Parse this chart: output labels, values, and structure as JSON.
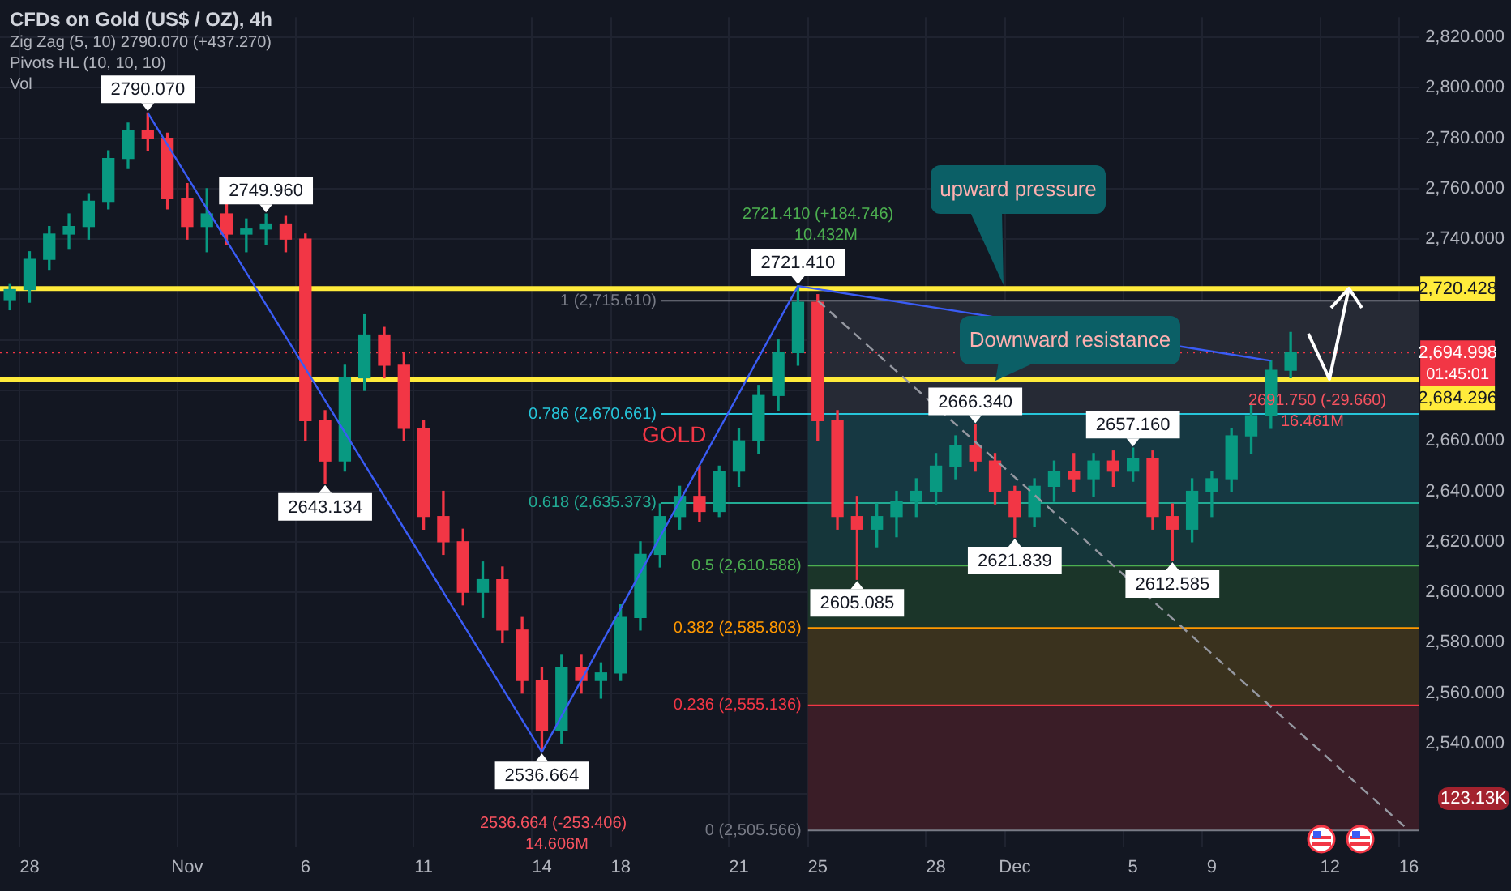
{
  "chart_data": {
    "type": "candlestick",
    "title": "CFDs on Gold (US$ / OZ), 4h",
    "categories": [
      null,
      "28",
      null,
      null,
      null,
      null,
      null,
      null,
      null,
      "Nov",
      null,
      null,
      null,
      null,
      null,
      "6",
      null,
      null,
      null,
      null,
      null,
      "11",
      null,
      null,
      null,
      null,
      null,
      "14",
      null,
      null,
      null,
      "18",
      null,
      null,
      null,
      null,
      null,
      "21",
      null,
      null,
      null,
      "25",
      null,
      null,
      null,
      null,
      null,
      "28",
      null,
      null,
      null,
      "Dec",
      null,
      null,
      null,
      null,
      null,
      "5",
      null,
      null,
      null,
      "9",
      null,
      null,
      null,
      null,
      null,
      "12",
      null,
      null,
      null,
      "16"
    ],
    "ohlc": [
      [
        2716,
        2722,
        2712,
        2720
      ],
      [
        2720,
        2735,
        2715,
        2732
      ],
      [
        2732,
        2745,
        2728,
        2742
      ],
      [
        2742,
        2750,
        2736,
        2745
      ],
      [
        2745,
        2758,
        2740,
        2755
      ],
      [
        2755,
        2775,
        2752,
        2772
      ],
      [
        2772,
        2786,
        2768,
        2783
      ],
      [
        2783,
        2790.07,
        2775,
        2780
      ],
      [
        2780,
        2782,
        2752,
        2756
      ],
      [
        2756,
        2762,
        2740,
        2745
      ],
      [
        2745,
        2760,
        2735,
        2750
      ],
      [
        2750,
        2755,
        2738,
        2742
      ],
      [
        2742,
        2748,
        2735,
        2744
      ],
      [
        2744,
        2749.96,
        2738,
        2746
      ],
      [
        2746,
        2749,
        2735,
        2740
      ],
      [
        2740,
        2742,
        2660,
        2668
      ],
      [
        2668,
        2672,
        2643.134,
        2652
      ],
      [
        2652,
        2690,
        2648,
        2685
      ],
      [
        2685,
        2710,
        2680,
        2702
      ],
      [
        2702,
        2705,
        2685,
        2690
      ],
      [
        2690,
        2695,
        2660,
        2665
      ],
      [
        2665,
        2668,
        2625,
        2630
      ],
      [
        2630,
        2640,
        2615,
        2620
      ],
      [
        2620,
        2625,
        2595,
        2600
      ],
      [
        2600,
        2612,
        2590,
        2605
      ],
      [
        2605,
        2610,
        2580,
        2585
      ],
      [
        2585,
        2590,
        2560,
        2565
      ],
      [
        2565,
        2570,
        2536.664,
        2545
      ],
      [
        2545,
        2575,
        2540,
        2570
      ],
      [
        2570,
        2575,
        2560,
        2565
      ],
      [
        2565,
        2572,
        2558,
        2568
      ],
      [
        2568,
        2595,
        2565,
        2590
      ],
      [
        2590,
        2620,
        2585,
        2615
      ],
      [
        2615,
        2635,
        2610,
        2630
      ],
      [
        2630,
        2642,
        2625,
        2638
      ],
      [
        2638,
        2650,
        2628,
        2632
      ],
      [
        2632,
        2650,
        2630,
        2648
      ],
      [
        2648,
        2665,
        2642,
        2660
      ],
      [
        2660,
        2682,
        2655,
        2678
      ],
      [
        2678,
        2700,
        2672,
        2695
      ],
      [
        2695,
        2721.41,
        2690,
        2715
      ],
      [
        2715,
        2718,
        2660,
        2668
      ],
      [
        2668,
        2672,
        2625,
        2630
      ],
      [
        2630,
        2638,
        2605.085,
        2625
      ],
      [
        2625,
        2635,
        2618,
        2630
      ],
      [
        2630,
        2640,
        2622,
        2636
      ],
      [
        2636,
        2645,
        2630,
        2640
      ],
      [
        2640,
        2655,
        2635,
        2650
      ],
      [
        2650,
        2662,
        2645,
        2658
      ],
      [
        2658,
        2666.34,
        2648,
        2652
      ],
      [
        2652,
        2655,
        2635,
        2640
      ],
      [
        2640,
        2642,
        2621.839,
        2630
      ],
      [
        2630,
        2645,
        2626,
        2642
      ],
      [
        2642,
        2652,
        2636,
        2648
      ],
      [
        2648,
        2655,
        2640,
        2645
      ],
      [
        2645,
        2655,
        2638,
        2652
      ],
      [
        2652,
        2656,
        2642,
        2648
      ],
      [
        2648,
        2657.16,
        2644,
        2653
      ],
      [
        2653,
        2656,
        2625,
        2630
      ],
      [
        2630,
        2635,
        2612.585,
        2625
      ],
      [
        2625,
        2645,
        2620,
        2640
      ],
      [
        2640,
        2648,
        2630,
        2645
      ],
      [
        2645,
        2665,
        2640,
        2662
      ],
      [
        2662,
        2675,
        2655,
        2670
      ],
      [
        2670,
        2691.75,
        2665,
        2688
      ],
      [
        2688,
        2703,
        2685,
        2694.998
      ],
      null,
      null,
      null,
      null,
      null,
      null
    ],
    "colors": [
      "#089981",
      "#089981",
      "#089981",
      "#089981",
      "#089981",
      "#089981",
      "#089981",
      "#f23645",
      "#f23645",
      "#f23645",
      "#089981",
      "#f23645",
      "#089981",
      "#089981",
      "#f23645",
      "#f23645",
      "#f23645",
      "#089981",
      "#089981",
      "#f23645",
      "#f23645",
      "#f23645",
      "#f23645",
      "#f23645",
      "#089981",
      "#f23645",
      "#f23645",
      "#f23645",
      "#089981",
      "#f23645",
      "#089981",
      "#089981",
      "#089981",
      "#089981",
      "#089981",
      "#f23645",
      "#089981",
      "#089981",
      "#089981",
      "#089981",
      "#089981",
      "#f23645",
      "#f23645",
      "#f23645",
      "#089981",
      "#089981",
      "#089981",
      "#089981",
      "#089981",
      "#f23645",
      "#f23645",
      "#f23645",
      "#089981",
      "#089981",
      "#f23645",
      "#089981",
      "#f23645",
      "#089981",
      "#f23645",
      "#f23645",
      "#089981",
      "#089981",
      "#089981",
      "#089981",
      "#089981",
      "#089981",
      null,
      null,
      null,
      null,
      null,
      null
    ],
    "series": [
      {
        "type": "line",
        "color": "#3a5cf5",
        "values": [
          null,
          null,
          null,
          null,
          null,
          null,
          null,
          2790.07,
          null,
          null,
          null,
          null,
          null,
          null,
          null,
          null,
          null,
          null,
          null,
          null,
          null,
          null,
          null,
          null,
          null,
          null,
          null,
          2536.664,
          null,
          null,
          null,
          null,
          null,
          null,
          null,
          null,
          null,
          null,
          null,
          null,
          2721.41,
          null,
          null,
          null,
          null,
          null,
          null,
          null,
          null,
          null,
          null,
          null,
          null,
          null,
          null,
          null,
          null,
          null,
          null,
          null,
          null,
          null,
          null,
          null,
          2691.75,
          null,
          null,
          null,
          null,
          null,
          null,
          null
        ]
      },
      {
        "type": "line",
        "color": "#9598a1",
        "line_style": "dashed",
        "values": [
          null,
          null,
          null,
          null,
          null,
          null,
          null,
          null,
          null,
          null,
          null,
          null,
          null,
          null,
          null,
          null,
          null,
          null,
          null,
          null,
          null,
          null,
          null,
          null,
          null,
          null,
          null,
          null,
          null,
          null,
          null,
          null,
          null,
          null,
          null,
          null,
          null,
          null,
          null,
          null,
          null,
          2715.61,
          null,
          null,
          null,
          null,
          null,
          null,
          null,
          null,
          null,
          null,
          null,
          null,
          null,
          null,
          null,
          null,
          null,
          null,
          null,
          null,
          null,
          null,
          null,
          null,
          null,
          null,
          null,
          null,
          null,
          2505.566
        ]
      }
    ],
    "ylim": [
      2499,
      2828
    ],
    "yticks": [
      {
        "value": 2520,
        "label": null
      },
      {
        "value": 2540,
        "label": "2,540.000"
      },
      {
        "value": 2560,
        "label": "2,560.000"
      },
      {
        "value": 2580,
        "label": "2,580.000"
      },
      {
        "value": 2600,
        "label": "2,600.000"
      },
      {
        "value": 2620,
        "label": "2,620.000"
      },
      {
        "value": 2640,
        "label": "2,640.000"
      },
      {
        "value": 2660,
        "label": "2,660.000"
      },
      {
        "value": 2680,
        "label": null
      },
      {
        "value": 2700,
        "label": null
      },
      {
        "value": 2720,
        "label": null
      },
      {
        "value": 2740,
        "label": "2,740.000"
      },
      {
        "value": 2760,
        "label": "2,760.000"
      },
      {
        "value": 2780,
        "label": "2,780.000"
      },
      {
        "value": 2800,
        "label": "2,800.000"
      },
      {
        "value": 2820,
        "label": "2,820.000"
      }
    ],
    "ref_lines": [
      {
        "axis": "y",
        "value": 2720.428,
        "label": "2,720.428",
        "color": "#ffeb3b"
      },
      {
        "axis": "y",
        "value": 2684.296,
        "label": "2,684.296",
        "color": "#ffeb3b"
      },
      {
        "axis": "y",
        "value": 2694.998,
        "label": "2,694.998",
        "color": "#f23645",
        "line_style": "dotted"
      },
      {
        "axis": "y",
        "value": 2715.61,
        "label": "1 (2,715.610)",
        "color": "#787b86"
      },
      {
        "axis": "y",
        "value": 2670.661,
        "label": "0.786 (2,670.661)",
        "color": "#26c6da"
      },
      {
        "axis": "y",
        "value": 2635.373,
        "label": "0.618 (2,635.373)",
        "color": "#22ab94"
      },
      {
        "axis": "y",
        "value": 2610.588,
        "label": "0.5 (2,610.588)",
        "color": "#4caf50"
      },
      {
        "axis": "y",
        "value": 2585.803,
        "label": "0.382 (2,585.803)",
        "color": "#ff9800"
      },
      {
        "axis": "y",
        "value": 2555.136,
        "label": "0.236 (2,555.136)",
        "color": "#f23645"
      },
      {
        "axis": "y",
        "value": 2505.566,
        "label": "0 (2,505.566)",
        "color": "#787b86"
      }
    ],
    "bands": [
      {
        "axis": "y",
        "from": 2670.661,
        "to": 2715.61,
        "color": "#262a35"
      },
      {
        "axis": "y",
        "from": 2635.373,
        "to": 2670.661,
        "color": "#163842"
      },
      {
        "axis": "y",
        "from": 2610.588,
        "to": 2635.373,
        "color": "#15363a"
      },
      {
        "axis": "y",
        "from": 2585.803,
        "to": 2610.588,
        "color": "#1b3529"
      },
      {
        "axis": "y",
        "from": 2555.136,
        "to": 2585.803,
        "color": "#3a321e"
      },
      {
        "axis": "y",
        "from": 2505.566,
        "to": 2555.136,
        "color": "#3a1d27"
      }
    ],
    "annotations": [
      "Zig Zag (5, 10) 2790.070 (+437.270)",
      "Pivots HL (10, 10, 10)",
      "Vol",
      "upward pressure",
      "Downward resistance",
      "GOLD",
      "2721.410 (+184.746)",
      "10.432M",
      "2536.664 (-253.406)",
      "14.606M",
      "2691.750 (-29.660)",
      "16.461M",
      "01:45:01",
      "123.13K",
      {
        "text": "2790.070",
        "y": 2790.07
      },
      {
        "text": "2749.960",
        "y": 2749.96
      },
      {
        "text": "2643.134",
        "y": 2643.134
      },
      {
        "text": "2536.664",
        "y": 2536.664
      },
      {
        "text": "2721.410",
        "y": 2721.41
      },
      {
        "text": "2605.085",
        "y": 2605.085
      },
      {
        "text": "2666.340",
        "y": 2666.34
      },
      {
        "text": "2621.839",
        "y": 2621.839
      },
      {
        "text": "2657.160",
        "y": 2657.16
      },
      {
        "text": "2612.585",
        "y": 2612.585
      }
    ],
    "grid": true,
    "legend": false
  }
}
